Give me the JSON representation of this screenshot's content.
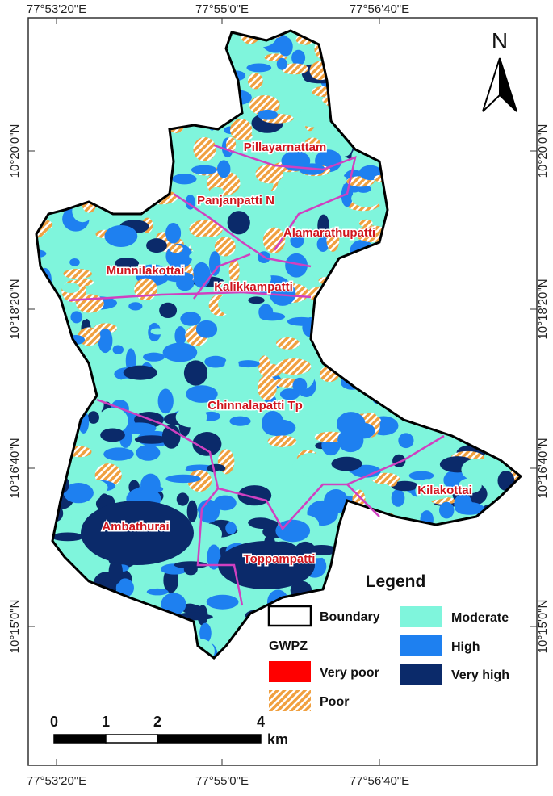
{
  "map": {
    "coordinates": {
      "top": [
        "77°53'20\"E",
        "77°55'0\"E",
        "77°56'40\"E"
      ],
      "bottom": [
        "77°53'20\"E",
        "77°55'0\"E",
        "77°56'40\"E"
      ],
      "left": [
        "10°20'0\"N",
        "10°18'20\"N",
        "10°16'40\"N",
        "10°15'0\"N"
      ],
      "right": [
        "10°20'0\"N",
        "10°18'20\"N",
        "10°16'40\"N",
        "10°15'0\"N"
      ]
    },
    "north": "N",
    "places": [
      "Pillayarnattam",
      "Panjanpatti N",
      "Alamarathupatti",
      "Munnilakottai",
      "Kalikkampatti",
      "Chinnalapatti Tp",
      "Kilakottai",
      "Ambathurai",
      "Toppampatti"
    ],
    "legend": {
      "title": "Legend",
      "boundary": "Boundary",
      "group": "GWPZ",
      "classes": [
        {
          "label": "Very poor",
          "color": "#ff0000"
        },
        {
          "label": "Poor",
          "color": "#f0a040",
          "hatch": true
        },
        {
          "label": "Moderate",
          "color": "#7ff5dc"
        },
        {
          "label": "High",
          "color": "#1e80f0"
        },
        {
          "label": "Very high",
          "color": "#0b2a6a"
        }
      ]
    },
    "scale": {
      "ticks": [
        0,
        1,
        2,
        4
      ],
      "unit": "km"
    }
  }
}
